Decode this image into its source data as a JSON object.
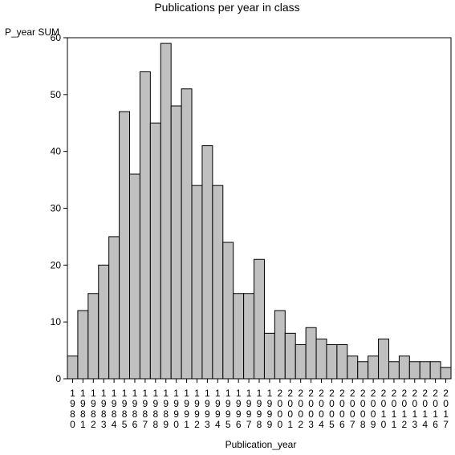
{
  "chart_data": {
    "type": "bar",
    "title": "Publications per year in class",
    "xlabel": "Publication_year",
    "ylabel": "P_year SUM",
    "ylim": [
      0,
      60
    ],
    "yticks": [
      0,
      10,
      20,
      30,
      40,
      50,
      60
    ],
    "grid": false,
    "categories": [
      "1980",
      "1981",
      "1982",
      "1983",
      "1984",
      "1985",
      "1986",
      "1987",
      "1988",
      "1989",
      "1990",
      "1991",
      "1992",
      "1993",
      "1994",
      "1995",
      "1996",
      "1997",
      "1998",
      "1999",
      "2000",
      "2001",
      "2002",
      "2003",
      "2004",
      "2005",
      "2006",
      "2007",
      "2008",
      "2009",
      "2010",
      "2011",
      "2012",
      "2013",
      "2014",
      "2016",
      "2017"
    ],
    "values": [
      4,
      12,
      15,
      20,
      25,
      47,
      36,
      54,
      45,
      59,
      48,
      51,
      34,
      41,
      34,
      24,
      15,
      15,
      21,
      8,
      12,
      8,
      6,
      9,
      7,
      6,
      6,
      4,
      3,
      4,
      7,
      3,
      4,
      3,
      3,
      3,
      2
    ],
    "colors": {
      "bar_fill": "#c0c0c0",
      "bar_stroke": "#000000",
      "frame": "#000000"
    }
  }
}
